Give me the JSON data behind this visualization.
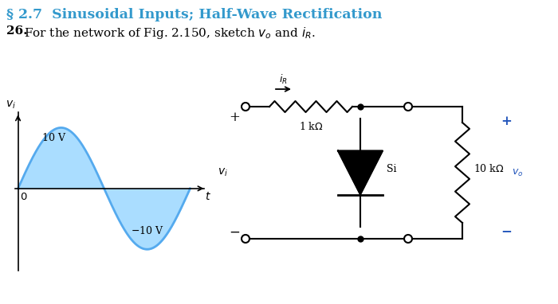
{
  "title": "§ 2.7  Sinusoidal Inputs; Half-Wave Rectification",
  "title_color": "#3399CC",
  "bg_color": "#FFFFFF",
  "sine_color": "#55AAEE",
  "sine_fill_color": "#AADDFF",
  "question_bold": "26.",
  "question_rest": "  For the network of Fig. 2.150, sketch νₒ and ιᵣ.",
  "label_10V": "10 V",
  "label_neg10V": "−10 V",
  "label_1k": "1 kΩ",
  "label_10k": "10 kΩ",
  "label_Si": "Si",
  "circuit_lw": 1.5,
  "sine_lw": 2.0,
  "plus_color": "#2255BB",
  "minus_color": "#2255BB"
}
